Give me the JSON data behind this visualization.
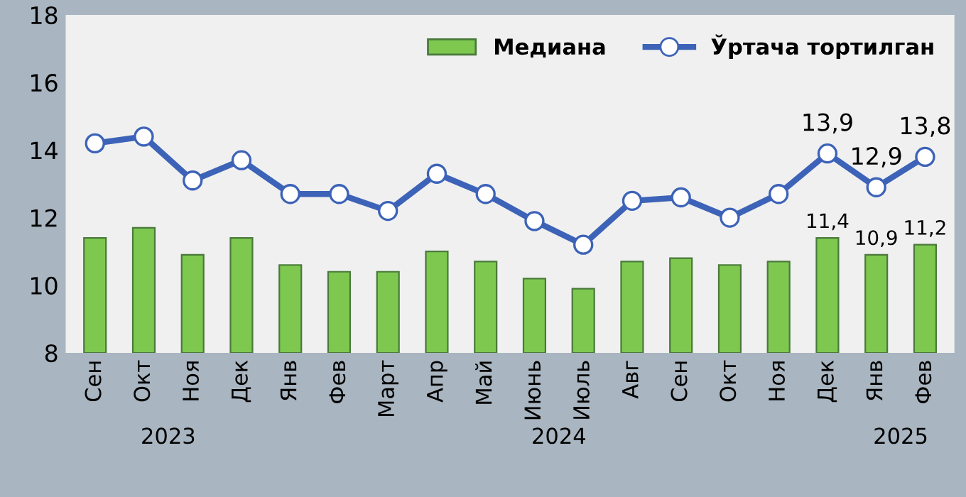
{
  "chart_data": {
    "type": "bar",
    "categories": [
      "Сен",
      "Окт",
      "Ноя",
      "Дек",
      "Янв",
      "Фев",
      "Март",
      "Апр",
      "Май",
      "Июнь",
      "Июль",
      "Авг",
      "Сен",
      "Окт",
      "Ноя",
      "Дек",
      "Янв",
      "Фев"
    ],
    "series": [
      {
        "name": "Медиана",
        "color": "#7ec850",
        "values": [
          11.4,
          11.7,
          10.9,
          11.4,
          10.6,
          10.4,
          10.4,
          11.0,
          10.7,
          10.2,
          9.9,
          10.7,
          10.8,
          10.6,
          10.7,
          11.4,
          10.9,
          11.2
        ],
        "value_labels": [
          null,
          null,
          null,
          null,
          null,
          null,
          null,
          null,
          null,
          null,
          null,
          null,
          null,
          null,
          null,
          "11,4",
          "10,9",
          "11,2"
        ]
      },
      {
        "name": "Ўртача тортилган",
        "type": "line",
        "color": "#3d63b8",
        "marker": "circle",
        "values": [
          14.2,
          14.4,
          13.1,
          13.7,
          12.7,
          12.7,
          12.2,
          13.3,
          12.7,
          11.9,
          11.2,
          12.5,
          12.6,
          12.0,
          12.7,
          13.9,
          12.9,
          13.8
        ],
        "value_labels": [
          null,
          null,
          null,
          null,
          null,
          null,
          null,
          null,
          null,
          null,
          null,
          null,
          null,
          null,
          null,
          "13,9",
          "12,9",
          "13,8"
        ]
      }
    ],
    "ylim": [
      8,
      18
    ],
    "yticks": [
      8,
      10,
      12,
      14,
      16,
      18
    ],
    "grid": false,
    "legend": "top right",
    "annotations": [
      "2023",
      "2024",
      "2025"
    ]
  }
}
